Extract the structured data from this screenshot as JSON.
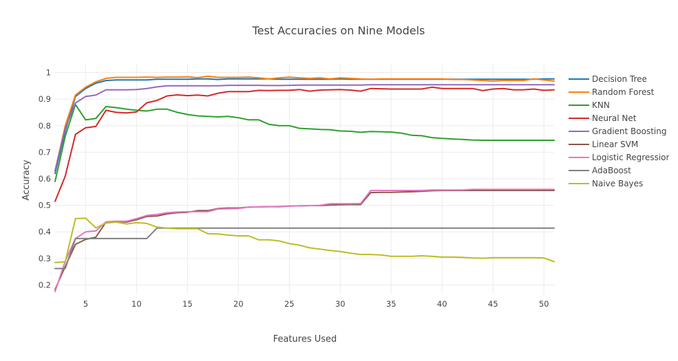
{
  "chart_data": {
    "type": "line",
    "title": "Test Accuracies on Nine Models",
    "xlabel": "Features Used",
    "ylabel": "Accuracy",
    "xlim": [
      2,
      51
    ],
    "ylim": [
      0.165,
      1.035
    ],
    "xticks": [
      5,
      10,
      15,
      20,
      25,
      30,
      35,
      40,
      45,
      50
    ],
    "yticks": [
      0.2,
      0.3,
      0.4,
      0.5,
      0.6,
      0.7,
      0.8,
      0.9,
      1
    ],
    "ytick_labels": [
      "0.2",
      "0.3",
      "0.4",
      "0.5",
      "0.6",
      "0.7",
      "0.8",
      "0.9",
      "1"
    ],
    "grid": true,
    "legend_position": "right",
    "x": [
      2,
      3,
      4,
      5,
      6,
      7,
      8,
      9,
      10,
      11,
      12,
      13,
      14,
      15,
      16,
      17,
      18,
      19,
      20,
      21,
      22,
      23,
      24,
      25,
      26,
      27,
      28,
      29,
      30,
      31,
      32,
      33,
      34,
      35,
      36,
      37,
      38,
      39,
      40,
      41,
      42,
      43,
      44,
      45,
      46,
      47,
      48,
      49,
      50,
      51
    ],
    "series": [
      {
        "name": "Decision Tree",
        "color": "#1f77b4",
        "values": [
          0.62,
          0.78,
          0.91,
          0.94,
          0.96,
          0.97,
          0.972,
          0.972,
          0.972,
          0.972,
          0.975,
          0.975,
          0.975,
          0.975,
          0.976,
          0.976,
          0.974,
          0.976,
          0.976,
          0.976,
          0.976,
          0.976,
          0.975,
          0.975,
          0.975,
          0.975,
          0.975,
          0.975,
          0.976,
          0.975,
          0.975,
          0.975,
          0.975,
          0.975,
          0.975,
          0.975,
          0.975,
          0.975,
          0.975,
          0.975,
          0.975,
          0.975,
          0.975,
          0.975,
          0.975,
          0.975,
          0.975,
          0.975,
          0.976,
          0.976
        ]
      },
      {
        "name": "Random Forest",
        "color": "#ff7f0e",
        "values": [
          0.63,
          0.8,
          0.915,
          0.945,
          0.965,
          0.978,
          0.982,
          0.982,
          0.982,
          0.983,
          0.982,
          0.983,
          0.983,
          0.984,
          0.981,
          0.986,
          0.982,
          0.982,
          0.982,
          0.983,
          0.98,
          0.976,
          0.98,
          0.983,
          0.98,
          0.978,
          0.98,
          0.976,
          0.98,
          0.978,
          0.976,
          0.975,
          0.976,
          0.976,
          0.976,
          0.976,
          0.976,
          0.976,
          0.976,
          0.974,
          0.974,
          0.972,
          0.97,
          0.968,
          0.97,
          0.97,
          0.97,
          0.976,
          0.972,
          0.968
        ]
      },
      {
        "name": "KNN",
        "color": "#2ca02c",
        "values": [
          0.59,
          0.76,
          0.88,
          0.822,
          0.827,
          0.872,
          0.868,
          0.862,
          0.858,
          0.855,
          0.862,
          0.862,
          0.85,
          0.842,
          0.837,
          0.835,
          0.833,
          0.835,
          0.83,
          0.822,
          0.822,
          0.805,
          0.8,
          0.8,
          0.79,
          0.788,
          0.786,
          0.785,
          0.78,
          0.779,
          0.775,
          0.778,
          0.777,
          0.776,
          0.772,
          0.764,
          0.762,
          0.755,
          0.752,
          0.75,
          0.748,
          0.746,
          0.745,
          0.745,
          0.745,
          0.745,
          0.745,
          0.745,
          0.745,
          0.745
        ]
      },
      {
        "name": "Neural Net",
        "color": "#d62728",
        "values": [
          0.515,
          0.61,
          0.767,
          0.792,
          0.797,
          0.858,
          0.85,
          0.848,
          0.852,
          0.886,
          0.895,
          0.912,
          0.916,
          0.913,
          0.915,
          0.912,
          0.922,
          0.928,
          0.928,
          0.928,
          0.933,
          0.932,
          0.933,
          0.933,
          0.936,
          0.93,
          0.934,
          0.935,
          0.936,
          0.934,
          0.93,
          0.94,
          0.939,
          0.938,
          0.938,
          0.938,
          0.938,
          0.945,
          0.94,
          0.94,
          0.94,
          0.94,
          0.932,
          0.938,
          0.94,
          0.935,
          0.935,
          0.938,
          0.933,
          0.935
        ]
      },
      {
        "name": "Gradient Boosting",
        "color": "#9467bd",
        "values": [
          0.63,
          0.79,
          0.885,
          0.91,
          0.915,
          0.935,
          0.935,
          0.935,
          0.936,
          0.94,
          0.946,
          0.95,
          0.95,
          0.95,
          0.95,
          0.95,
          0.95,
          0.952,
          0.952,
          0.952,
          0.952,
          0.951,
          0.951,
          0.952,
          0.953,
          0.953,
          0.953,
          0.953,
          0.953,
          0.953,
          0.953,
          0.954,
          0.954,
          0.954,
          0.954,
          0.954,
          0.954,
          0.954,
          0.954,
          0.954,
          0.954,
          0.954,
          0.954,
          0.954,
          0.954,
          0.954,
          0.954,
          0.954,
          0.954,
          0.954
        ]
      },
      {
        "name": "Linear SVM",
        "color": "#8c564b",
        "values": [
          0.183,
          0.27,
          0.353,
          0.372,
          0.38,
          0.437,
          0.44,
          0.437,
          0.446,
          0.458,
          0.46,
          0.468,
          0.472,
          0.474,
          0.48,
          0.48,
          0.488,
          0.49,
          0.49,
          0.493,
          0.494,
          0.495,
          0.495,
          0.497,
          0.498,
          0.499,
          0.499,
          0.501,
          0.502,
          0.503,
          0.503,
          0.548,
          0.549,
          0.549,
          0.55,
          0.551,
          0.553,
          0.555,
          0.556,
          0.556,
          0.556,
          0.556,
          0.556,
          0.556,
          0.556,
          0.556,
          0.556,
          0.556,
          0.556,
          0.556
        ]
      },
      {
        "name": "Logistic Regression",
        "color": "#e377c2",
        "values": [
          0.175,
          0.29,
          0.375,
          0.4,
          0.404,
          0.438,
          0.44,
          0.44,
          0.45,
          0.462,
          0.466,
          0.472,
          0.475,
          0.476,
          0.476,
          0.476,
          0.486,
          0.487,
          0.488,
          0.493,
          0.494,
          0.495,
          0.496,
          0.497,
          0.498,
          0.499,
          0.5,
          0.506,
          0.506,
          0.506,
          0.507,
          0.556,
          0.556,
          0.556,
          0.556,
          0.556,
          0.556,
          0.558,
          0.558,
          0.558,
          0.558,
          0.56,
          0.56,
          0.56,
          0.56,
          0.56,
          0.56,
          0.56,
          0.56,
          0.56
        ]
      },
      {
        "name": "AdaBoost",
        "color": "#7f7f7f",
        "values": [
          0.262,
          0.262,
          0.375,
          0.375,
          0.375,
          0.375,
          0.375,
          0.375,
          0.375,
          0.375,
          0.414,
          0.414,
          0.414,
          0.414,
          0.414,
          0.414,
          0.414,
          0.414,
          0.414,
          0.414,
          0.414,
          0.414,
          0.414,
          0.414,
          0.414,
          0.414,
          0.414,
          0.414,
          0.414,
          0.414,
          0.414,
          0.414,
          0.414,
          0.414,
          0.414,
          0.414,
          0.414,
          0.414,
          0.414,
          0.414,
          0.414,
          0.414,
          0.414,
          0.414,
          0.414,
          0.414,
          0.414,
          0.414,
          0.414,
          0.414
        ]
      },
      {
        "name": "Naive Bayes",
        "color": "#bcbd22",
        "values": [
          0.285,
          0.287,
          0.45,
          0.452,
          0.415,
          0.433,
          0.437,
          0.43,
          0.435,
          0.432,
          0.418,
          0.414,
          0.412,
          0.412,
          0.412,
          0.393,
          0.392,
          0.388,
          0.385,
          0.385,
          0.37,
          0.37,
          0.366,
          0.356,
          0.35,
          0.34,
          0.335,
          0.33,
          0.326,
          0.32,
          0.315,
          0.315,
          0.313,
          0.308,
          0.308,
          0.308,
          0.31,
          0.308,
          0.305,
          0.305,
          0.304,
          0.302,
          0.301,
          0.303,
          0.303,
          0.303,
          0.303,
          0.303,
          0.302,
          0.288
        ]
      }
    ]
  }
}
